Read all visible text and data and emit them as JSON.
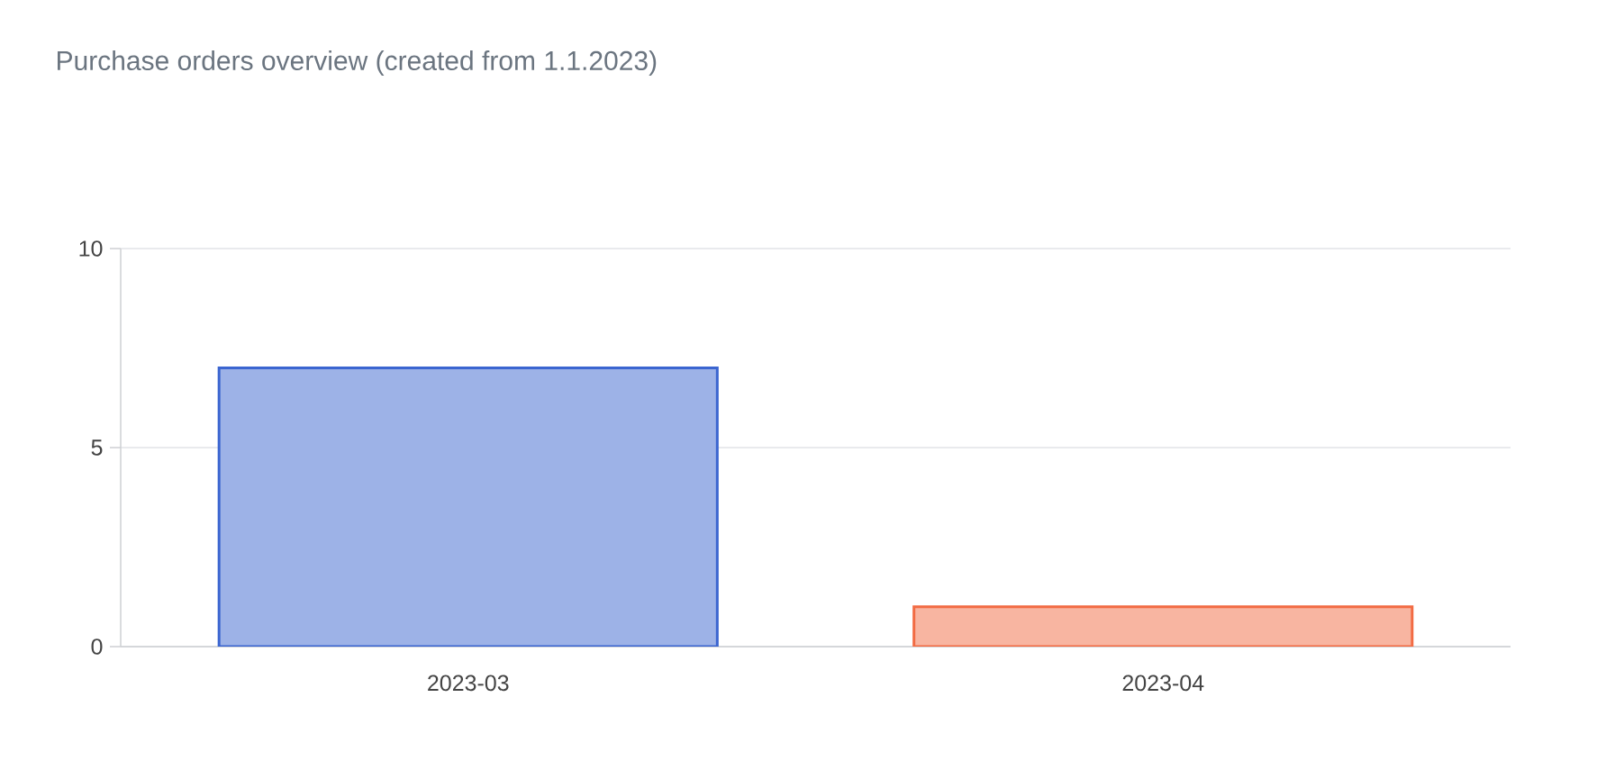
{
  "chart_data": {
    "type": "bar",
    "title": "Purchase orders overview (created from 1.1.2023)",
    "categories": [
      "2023-03",
      "2023-04"
    ],
    "values": [
      7,
      1
    ],
    "colors": [
      "#3b65d0",
      "#f26b43"
    ],
    "ylim": [
      0,
      10
    ],
    "yticks": [
      0,
      5,
      10
    ],
    "grid": "y"
  }
}
